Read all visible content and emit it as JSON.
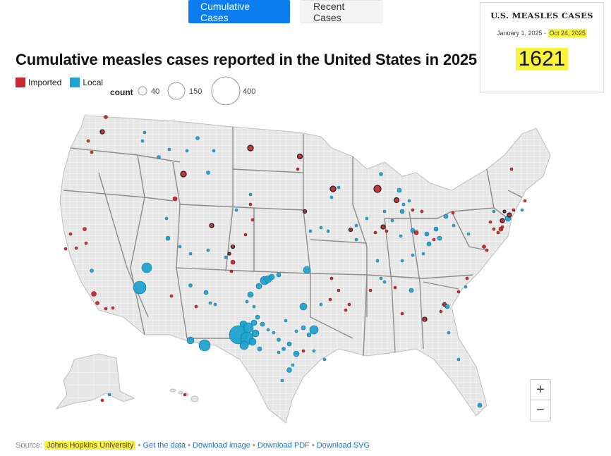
{
  "tabs": [
    {
      "label": "Cumulative Cases",
      "active": true
    },
    {
      "label": "Recent Cases",
      "active": false
    }
  ],
  "title": "Cumulative measles cases reported in the United States in 2025",
  "legend": {
    "imported_label": "Imported",
    "local_label": "Local",
    "count_label": "count",
    "sizes": [
      {
        "value": 40,
        "label": "40"
      },
      {
        "value": 150,
        "label": "150"
      },
      {
        "value": 400,
        "label": "400"
      }
    ]
  },
  "colors": {
    "imported": "#c9282d",
    "local": "#1fa3d1",
    "accent": "#0d7ef2",
    "highlight": "#f9f43a",
    "land": "#e6e6e6",
    "county_border": "#ffffff",
    "state_border": "#8c8c8c"
  },
  "stat_card": {
    "title": "U.S. MEASLES CASES",
    "date_start": "January 1, 2025 - ",
    "date_end": "Oct 24, 2025",
    "total": "1621"
  },
  "zoom": {
    "in": "+",
    "out": "−"
  },
  "footer": {
    "source_prefix": "Source:",
    "source_name": "Johns Hopkins University",
    "sep": " • ",
    "links": [
      "Get the data",
      "Download image",
      "Download PDF",
      "Download SVG"
    ]
  }
}
